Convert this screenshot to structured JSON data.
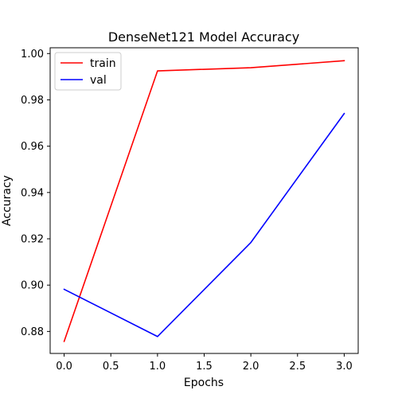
{
  "chart_data": {
    "type": "line",
    "title": "DenseNet121 Model Accuracy",
    "xlabel": "Epochs",
    "ylabel": "Accuracy",
    "xlim": [
      -0.15,
      3.15
    ],
    "ylim": [
      0.8705,
      1.0025
    ],
    "xticks": [
      0.0,
      0.5,
      1.0,
      1.5,
      2.0,
      2.5,
      3.0
    ],
    "xtick_labels": [
      "0.0",
      "0.5",
      "1.0",
      "1.5",
      "2.0",
      "2.5",
      "3.0"
    ],
    "yticks": [
      0.88,
      0.9,
      0.92,
      0.94,
      0.96,
      0.98,
      1.0
    ],
    "ytick_labels": [
      "0.88",
      "0.90",
      "0.92",
      "0.94",
      "0.96",
      "0.98",
      "1.00"
    ],
    "grid": false,
    "legend_position": "upper-left",
    "x": [
      0,
      1,
      2,
      3
    ],
    "series": [
      {
        "name": "train",
        "color": "#ff0000",
        "values": [
          0.8757,
          0.9925,
          0.9939,
          0.9969
        ]
      },
      {
        "name": "val",
        "color": "#0000ff",
        "values": [
          0.8982,
          0.8778,
          0.9184,
          0.9741
        ]
      }
    ]
  }
}
